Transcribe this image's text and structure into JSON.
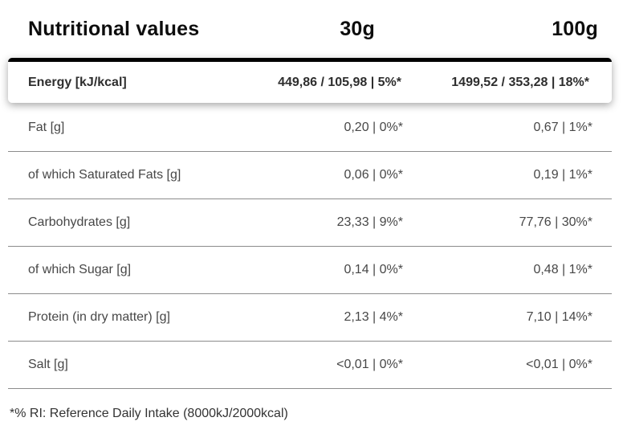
{
  "colors": {
    "accent_bar": "#000000",
    "separator": "#8c8c8c",
    "header_text": "#0d0d0d",
    "row_text": "#474747",
    "highlight_text": "#2e2e2e",
    "background": "#ffffff"
  },
  "table": {
    "header": {
      "title": "Nutritional values",
      "col_30g": "30g",
      "col_100g": "100g"
    },
    "energy_row": {
      "label": "Energy [kJ/kcal]",
      "per_30g": "449,86 / 105,98 | 5%*",
      "per_100g": "1499,52 / 353,28 | 18%*"
    },
    "rows": [
      {
        "label": "Fat [g]",
        "per_30g": "0,20 | 0%*",
        "per_100g": "0,67 | 1%*"
      },
      {
        "label": "of which Saturated Fats [g]",
        "per_30g": "0,06 | 0%*",
        "per_100g": "0,19 | 1%*"
      },
      {
        "label": "Carbohydrates [g]",
        "per_30g": "23,33 | 9%*",
        "per_100g": "77,76 | 30%*"
      },
      {
        "label": "of which Sugar [g]",
        "per_30g": "0,14 | 0%*",
        "per_100g": "0,48 | 1%*"
      },
      {
        "label": "Protein (in dry matter) [g]",
        "per_30g": "2,13 | 4%*",
        "per_100g": "7,10 | 14%*"
      },
      {
        "label": "Salt [g]",
        "per_30g": "<0,01 | 0%*",
        "per_100g": "<0,01 | 0%*"
      }
    ],
    "footnote": "*% RI: Reference Daily Intake (8000kJ/2000kcal)"
  }
}
